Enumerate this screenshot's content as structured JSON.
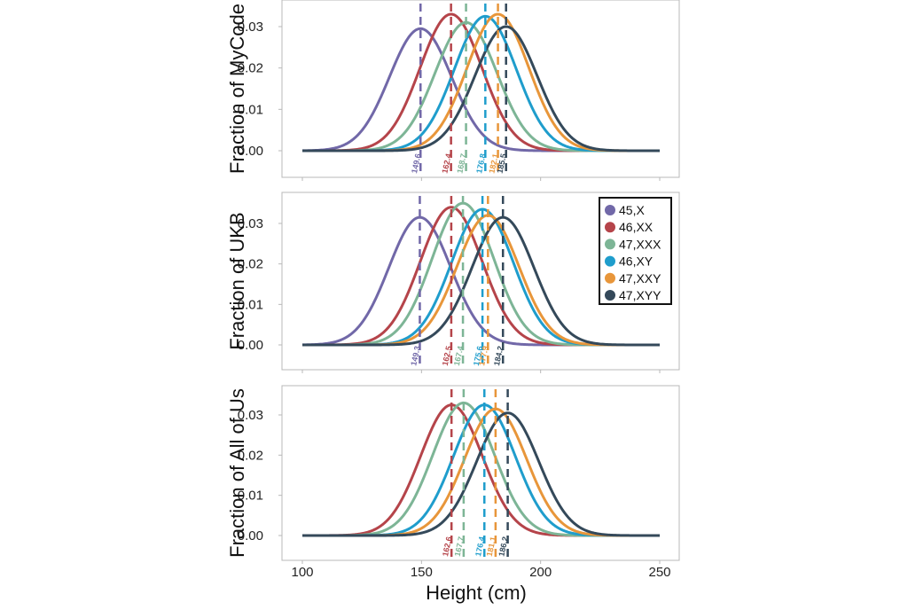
{
  "chart_data": {
    "type": "line",
    "xlabel": "Height (cm)",
    "xlim": [
      100,
      250
    ],
    "x_ticks": [
      "100",
      "150",
      "200",
      "250"
    ],
    "ylim": [
      -0.006,
      0.036
    ],
    "y_ticks": [
      "0.00",
      "0.01",
      "0.02",
      "0.03"
    ],
    "legend": {
      "position": "right of middle panel",
      "entries": [
        "45,X",
        "46,XX",
        "47,XXX",
        "46,XY",
        "47,XXY",
        "47,XYY"
      ]
    },
    "colors": {
      "45,X": "#7168a8",
      "46,XX": "#b5444a",
      "47,XXX": "#7db596",
      "46,XY": "#1f9dcc",
      "47,XXY": "#e8963a",
      "47,XYY": "#34495a"
    },
    "panels": [
      {
        "ylabel": "Fraction of MyCode",
        "series": [
          {
            "name": "45,X",
            "mean": 149.6,
            "peak": 0.0295,
            "label": "149.6"
          },
          {
            "name": "46,XX",
            "mean": 162.4,
            "peak": 0.033,
            "label": "162.4"
          },
          {
            "name": "47,XXX",
            "mean": 168.7,
            "peak": 0.031,
            "label": "168.7"
          },
          {
            "name": "46,XY",
            "mean": 176.8,
            "peak": 0.0325,
            "label": "176.8"
          },
          {
            "name": "47,XXY",
            "mean": 182.1,
            "peak": 0.033,
            "label": "182.1"
          },
          {
            "name": "47,XYY",
            "mean": 185.5,
            "peak": 0.03,
            "label": "185.5"
          }
        ]
      },
      {
        "ylabel": "Fraction of UKB",
        "series": [
          {
            "name": "45,X",
            "mean": 149.3,
            "peak": 0.0315,
            "label": "149.3"
          },
          {
            "name": "46,XX",
            "mean": 162.5,
            "peak": 0.034,
            "label": "162.5"
          },
          {
            "name": "47,XXX",
            "mean": 167.4,
            "peak": 0.035,
            "label": "167.4"
          },
          {
            "name": "46,XY",
            "mean": 175.6,
            "peak": 0.0335,
            "label": "175.6"
          },
          {
            "name": "47,XXY",
            "mean": 177.9,
            "peak": 0.032,
            "label": "177.9"
          },
          {
            "name": "47,XYY",
            "mean": 184.2,
            "peak": 0.0315,
            "label": "184.2"
          }
        ]
      },
      {
        "ylabel": "Fraction of All of Us",
        "series": [
          {
            "name": "46,XX",
            "mean": 162.6,
            "peak": 0.0325,
            "label": "162.6"
          },
          {
            "name": "47,XXX",
            "mean": 167.7,
            "peak": 0.033,
            "label": "167.7"
          },
          {
            "name": "46,XY",
            "mean": 176.4,
            "peak": 0.0325,
            "label": "176.4"
          },
          {
            "name": "47,XXY",
            "mean": 181.1,
            "peak": 0.0315,
            "label": "181.1"
          },
          {
            "name": "47,XYY",
            "mean": 186.2,
            "peak": 0.0305,
            "label": "186.2"
          }
        ]
      }
    ]
  }
}
